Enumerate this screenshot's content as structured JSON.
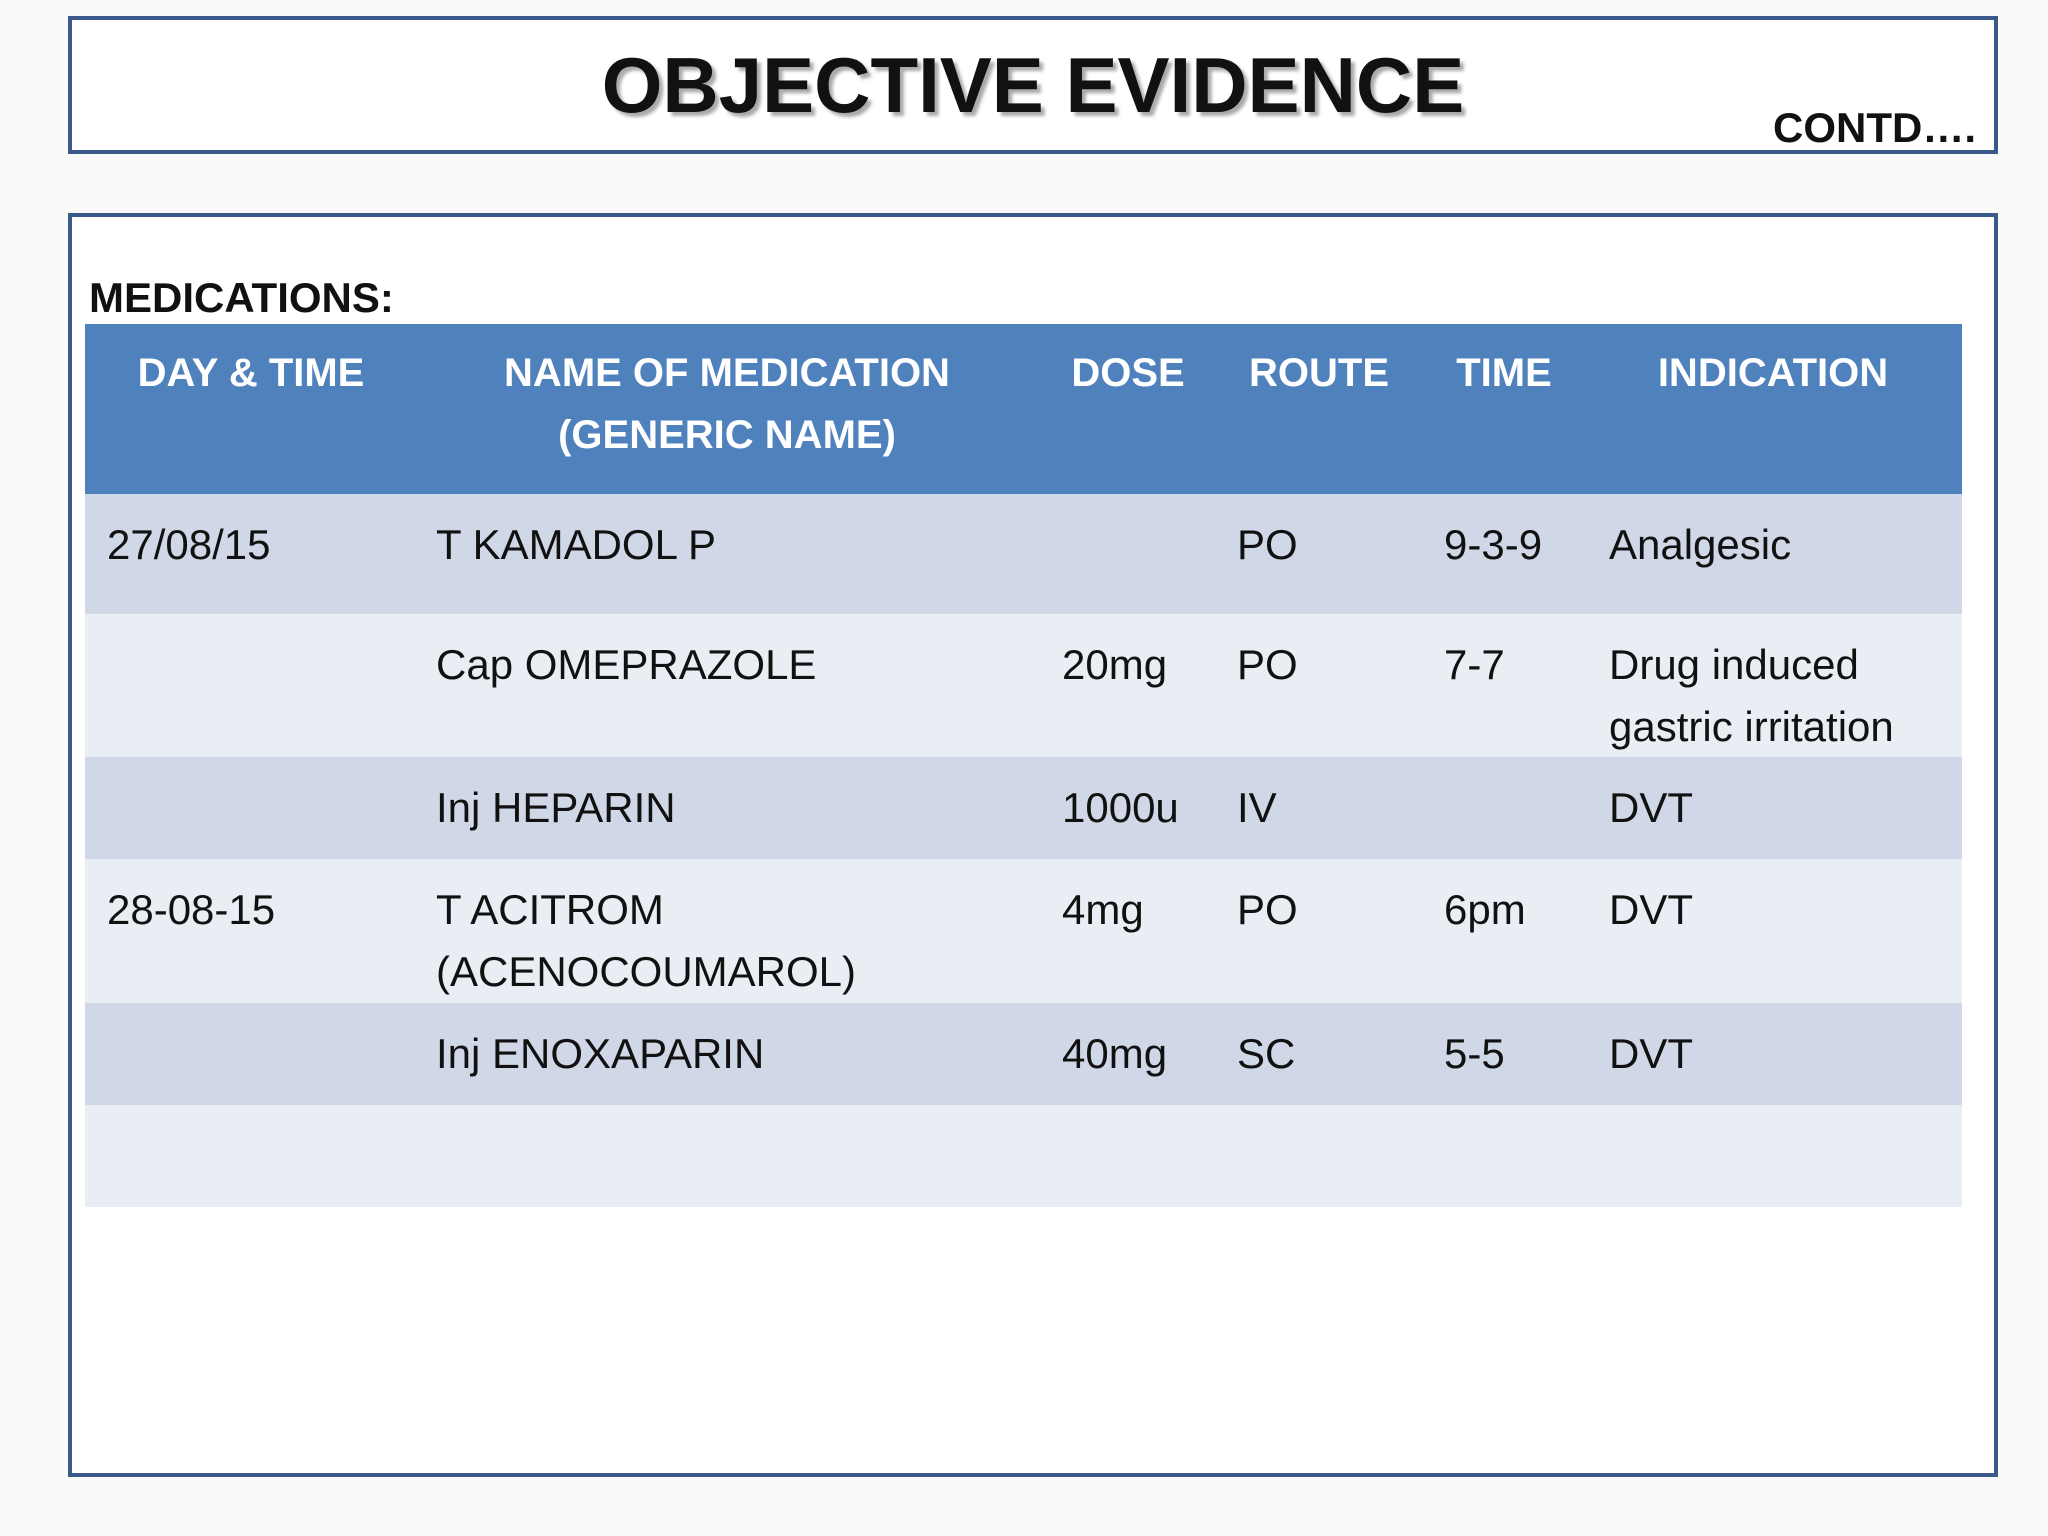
{
  "header": {
    "title": "OBJECTIVE EVIDENCE",
    "note": "CONTD…."
  },
  "section_label": "MEDICATIONS:",
  "table": {
    "columns": [
      "DAY & TIME",
      [
        "NAME OF MEDICATION",
        "(GENERIC NAME)"
      ],
      "DOSE",
      "ROUTE",
      "TIME",
      "INDICATION"
    ],
    "rows": [
      [
        "27/08/15",
        "T KAMADOL P",
        null,
        "PO",
        "9-3-9",
        "Analgesic"
      ],
      [
        null,
        "Cap OMEPRAZOLE",
        "20mg",
        "PO",
        "7-7",
        [
          "Drug induced",
          "gastric irritation"
        ]
      ],
      [
        null,
        "Inj HEPARIN",
        "1000u",
        "IV",
        null,
        "DVT"
      ],
      [
        "28-08-15",
        [
          "T ACITROM",
          "(ACENOCOUMAROL)"
        ],
        "4mg",
        "PO",
        "6pm",
        "DVT"
      ],
      [
        null,
        "Inj ENOXAPARIN",
        "40mg",
        "SC",
        "5-5",
        "DVT"
      ]
    ]
  }
}
